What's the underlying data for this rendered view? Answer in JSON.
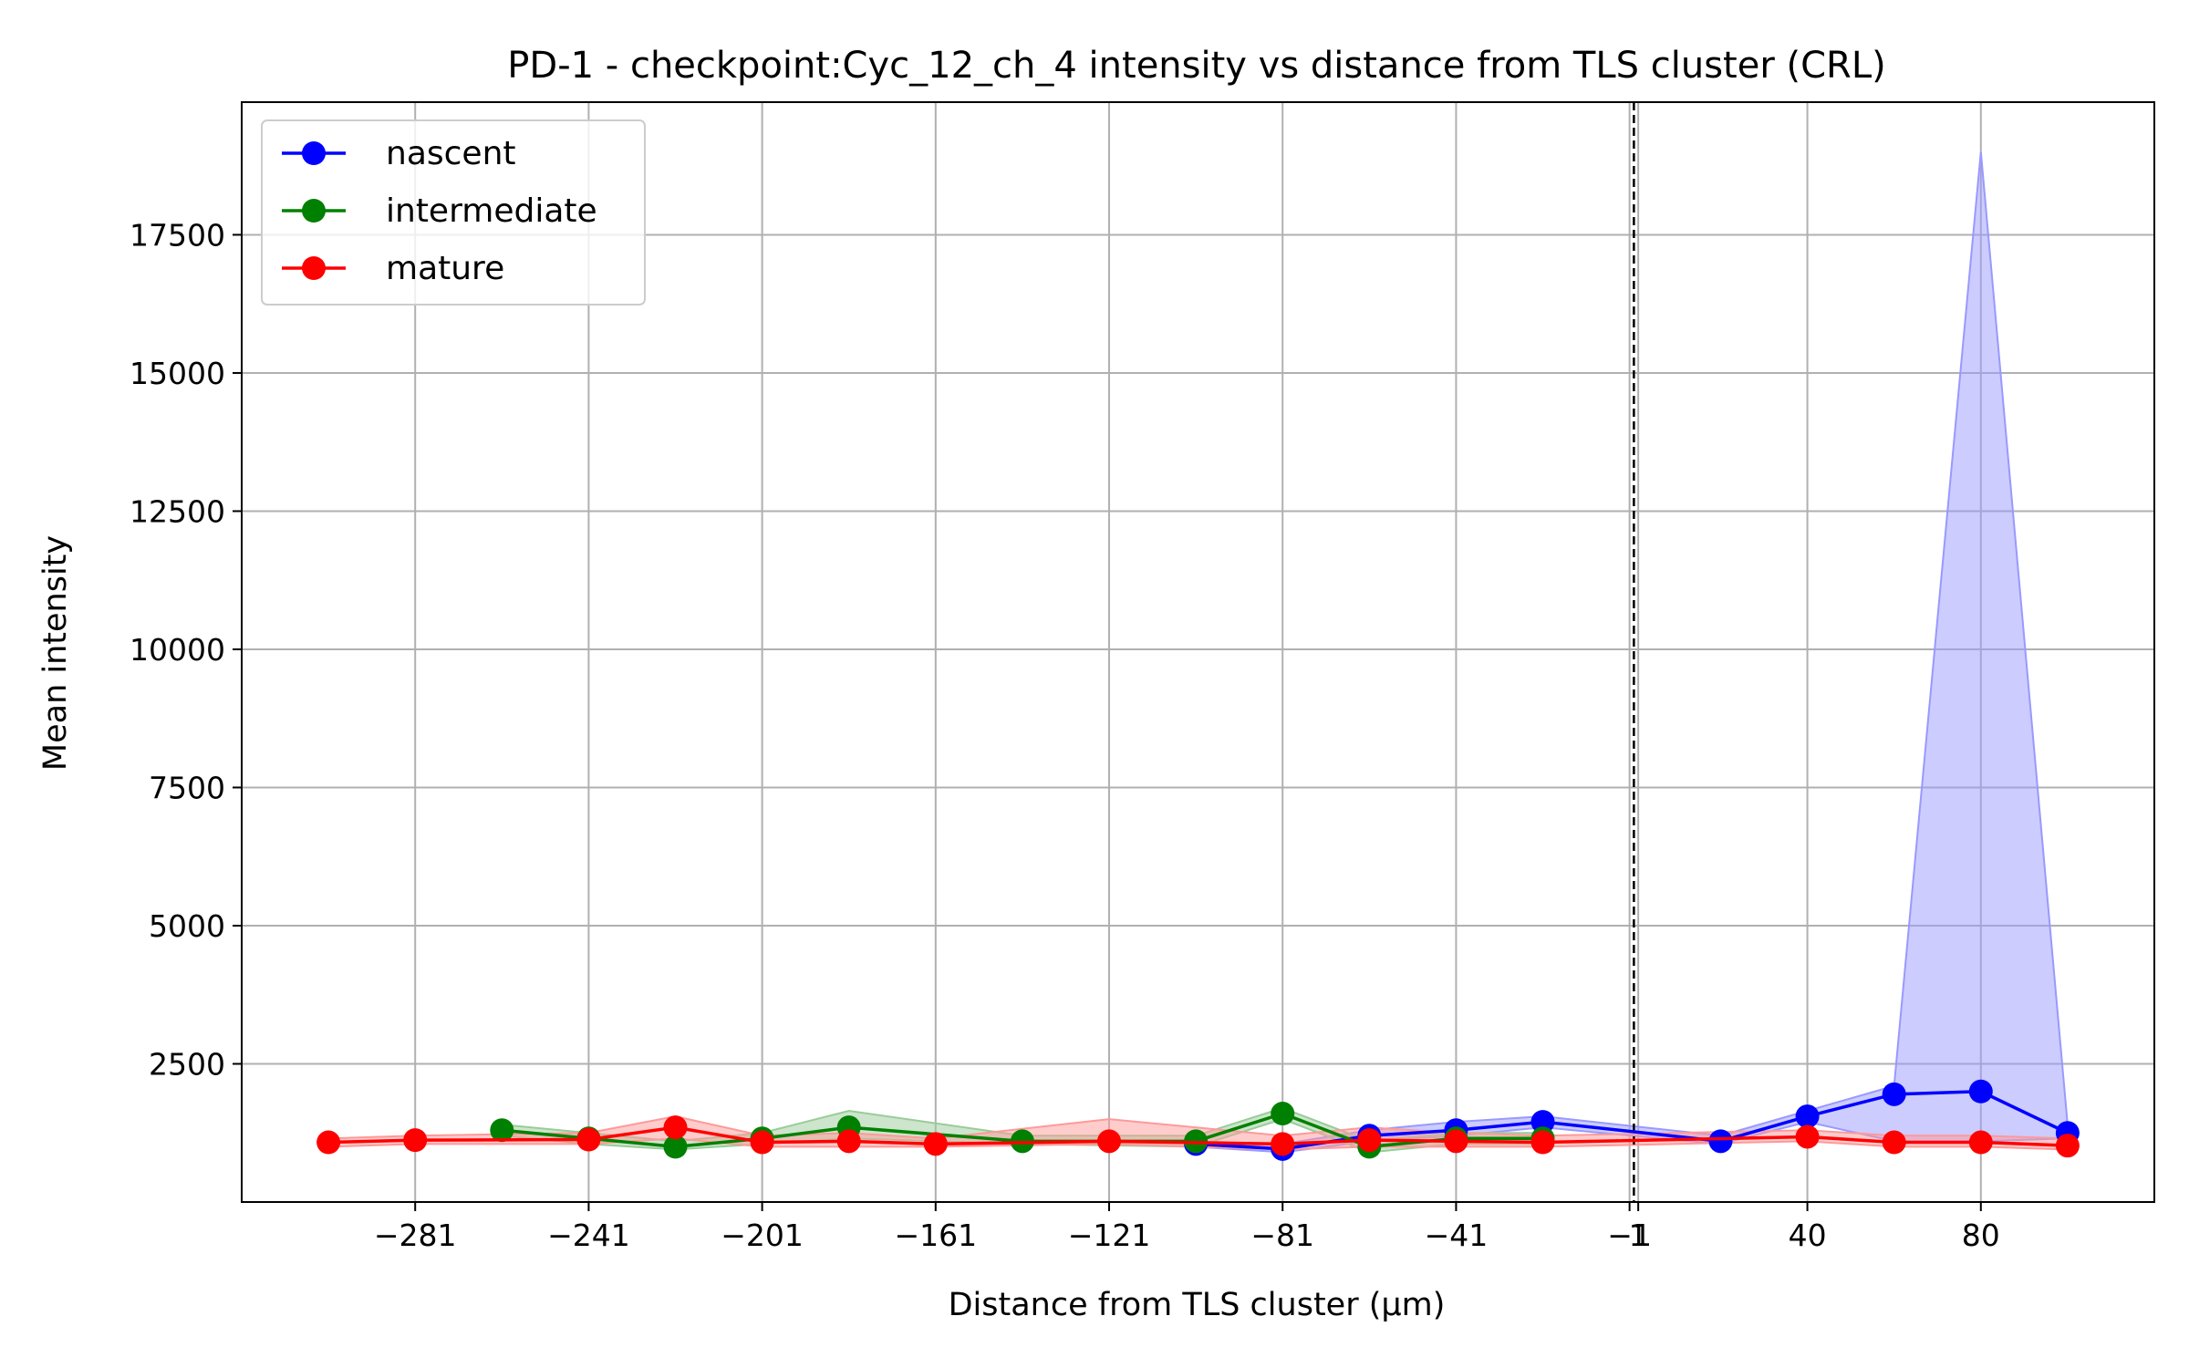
{
  "chart_data": {
    "type": "line",
    "title": "PD-1 - checkpoint:Cyc_12_ch_4 intensity vs distance from TLS cluster (CRL)",
    "xlabel": "Distance from TLS cluster (μm)",
    "ylabel": "Mean intensity",
    "xlim": [
      -321,
      120
    ],
    "ylim": [
      0,
      19900
    ],
    "xticks": [
      -281,
      -241,
      -201,
      -161,
      -121,
      -81,
      -41,
      -1,
      1,
      40,
      80
    ],
    "xtick_labels": [
      "−281",
      "−241",
      "−201",
      "−161",
      "−121",
      "−81",
      "−41",
      "−1",
      "1",
      "40",
      "80"
    ],
    "yticks": [
      2500,
      5000,
      7500,
      10000,
      12500,
      15000,
      17500
    ],
    "ytick_labels": [
      "2500",
      "5000",
      "7500",
      "10000",
      "12500",
      "15000",
      "17500"
    ],
    "grid": true,
    "legend_position": "top-left",
    "vline": {
      "x": 0,
      "style": "dashed",
      "color": "#000000"
    },
    "series": [
      {
        "name": "nascent",
        "color": "#0000ff",
        "band_color": "#9999ff",
        "x": [
          -101,
          -81,
          -61,
          -41,
          -21,
          20,
          40,
          60,
          80,
          100
        ],
        "y": [
          1050,
          960,
          1200,
          1300,
          1450,
          1100,
          1550,
          1950,
          2000,
          1250
        ],
        "lower": [
          1000,
          900,
          1100,
          1200,
          1350,
          1050,
          1450,
          1100,
          1100,
          1150
        ],
        "upper": [
          1100,
          1050,
          1300,
          1450,
          1550,
          1200,
          1650,
          2100,
          19000,
          1400
        ]
      },
      {
        "name": "intermediate",
        "color": "#008000",
        "band_color": "#99cc99",
        "x": [
          -261,
          -241,
          -221,
          -201,
          -181,
          -141,
          -101,
          -81,
          -61,
          -41,
          -21
        ],
        "y": [
          1300,
          1150,
          1000,
          1150,
          1350,
          1100,
          1100,
          1600,
          1000,
          1150,
          1150
        ],
        "lower": [
          1200,
          1050,
          950,
          1050,
          1150,
          1050,
          1000,
          1500,
          900,
          1050,
          1050
        ],
        "upper": [
          1400,
          1250,
          1100,
          1250,
          1650,
          1200,
          1200,
          1700,
          1100,
          1250,
          1250
        ]
      },
      {
        "name": "mature",
        "color": "#ff0000",
        "band_color": "#ff9999",
        "x": [
          -301,
          -281,
          -241,
          -221,
          -201,
          -181,
          -161,
          -121,
          -81,
          -61,
          -41,
          -21,
          40,
          60,
          80,
          100
        ],
        "y": [
          1080,
          1120,
          1130,
          1350,
          1080,
          1100,
          1050,
          1100,
          1050,
          1120,
          1100,
          1080,
          1180,
          1080,
          1080,
          1020
        ],
        "lower": [
          1000,
          1050,
          1050,
          1150,
          1000,
          1000,
          1000,
          1050,
          950,
          1000,
          1000,
          1000,
          1100,
          1000,
          1000,
          950
        ],
        "upper": [
          1150,
          1200,
          1250,
          1550,
          1200,
          1250,
          1150,
          1500,
          1200,
          1350,
          1250,
          1200,
          1300,
          1200,
          1200,
          1150
        ]
      }
    ]
  }
}
